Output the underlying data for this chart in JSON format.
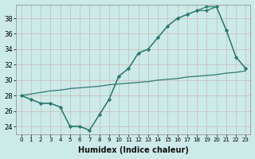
{
  "xlabel": "Humidex (Indice chaleur)",
  "ylabel": "",
  "bg_color": "#cceae8",
  "grid_color": "#c8b8b8",
  "line_color": "#2d7a6e",
  "xlim": [
    -0.5,
    23.5
  ],
  "ylim": [
    23.0,
    39.8
  ],
  "yticks": [
    24,
    26,
    28,
    30,
    32,
    34,
    36,
    38
  ],
  "xticks": [
    0,
    1,
    2,
    3,
    4,
    5,
    6,
    7,
    8,
    9,
    10,
    11,
    12,
    13,
    14,
    15,
    16,
    17,
    18,
    19,
    20,
    21,
    22,
    23
  ],
  "line1": [
    28,
    27.5,
    27,
    27,
    26.5,
    24.0,
    24.0,
    23.5,
    25.5,
    27.5,
    30.5,
    31.5,
    33.5,
    34.0,
    35.5,
    37.0,
    38.0,
    38.5,
    39.0,
    39.5,
    39.5,
    36.5,
    33.0,
    31.5
  ],
  "line2": [
    28,
    27.5,
    27,
    27,
    26.5,
    24.0,
    24.0,
    23.5,
    25.5,
    27.5,
    30.5,
    31.5,
    33.5,
    34.0,
    35.5,
    37.0,
    38.0,
    38.5,
    39.0,
    39.0,
    39.5,
    36.5,
    33.0,
    31.5
  ],
  "line3": [
    28.0,
    28.2,
    28.4,
    28.6,
    28.7,
    28.9,
    29.0,
    29.1,
    29.2,
    29.4,
    29.5,
    29.6,
    29.7,
    29.8,
    30.0,
    30.1,
    30.2,
    30.4,
    30.5,
    30.6,
    30.7,
    30.9,
    31.0,
    31.2
  ]
}
